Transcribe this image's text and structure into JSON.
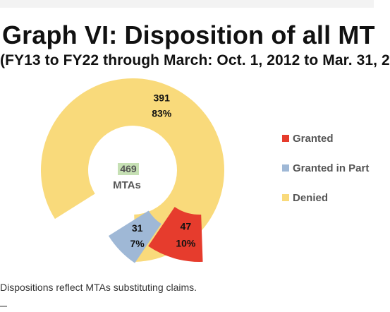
{
  "title": "Graph VI: Disposition of all MT",
  "subtitle": "(FY13 to FY22 through March: Oct. 1, 2012 to Mar. 31, 2",
  "footnote": "Dispositions reflect MTAs substituting claims.",
  "center_label": {
    "value": "469",
    "text": "MTAs"
  },
  "chart_data": {
    "type": "pie",
    "title": "Graph VI: Disposition of all MT",
    "subtitle": "(FY13 to FY22 through March: Oct. 1, 2012 to Mar. 31, 2",
    "categories": [
      "Granted",
      "Granted in Part",
      "Denied"
    ],
    "values": [
      47,
      31,
      391
    ],
    "percent_labels": [
      "10%",
      "7%",
      "83%"
    ],
    "value_labels": [
      "47",
      "31",
      "391"
    ],
    "total": 469,
    "center_value": "469",
    "center_text": "MTAs",
    "legend_position": "right",
    "colors": [
      "#e63c2d",
      "#9fb8d6",
      "#f9da7b"
    ],
    "center_badge_color": "#c6e0b4"
  },
  "legend": [
    {
      "label": "Granted",
      "color": "#e63c2d"
    },
    {
      "label": "Granted in Part",
      "color": "#9fb8d6"
    },
    {
      "label": "Denied",
      "color": "#f9da7b"
    }
  ]
}
